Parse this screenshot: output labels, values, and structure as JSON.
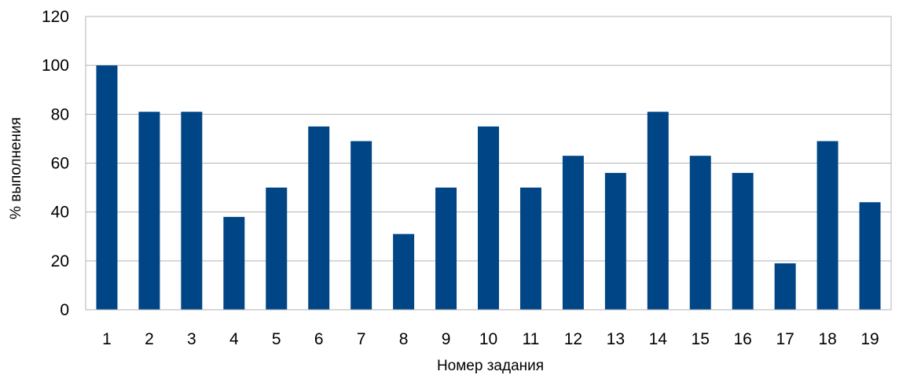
{
  "chart_data": {
    "type": "bar",
    "categories": [
      "1",
      "2",
      "3",
      "4",
      "5",
      "6",
      "7",
      "8",
      "9",
      "10",
      "11",
      "12",
      "13",
      "14",
      "15",
      "16",
      "17",
      "18",
      "19"
    ],
    "values": [
      100,
      81,
      81,
      38,
      50,
      75,
      69,
      31,
      50,
      75,
      50,
      63,
      56,
      81,
      63,
      56,
      19,
      69,
      44
    ],
    "title": "",
    "xlabel": "Номер задания",
    "ylabel": "% выполнения",
    "ylim": [
      0,
      120
    ],
    "yticks": [
      0,
      20,
      40,
      60,
      80,
      100,
      120
    ],
    "grid": true,
    "legend": "none",
    "bar_color": "#004586",
    "grid_color": "#b3b3b3"
  }
}
